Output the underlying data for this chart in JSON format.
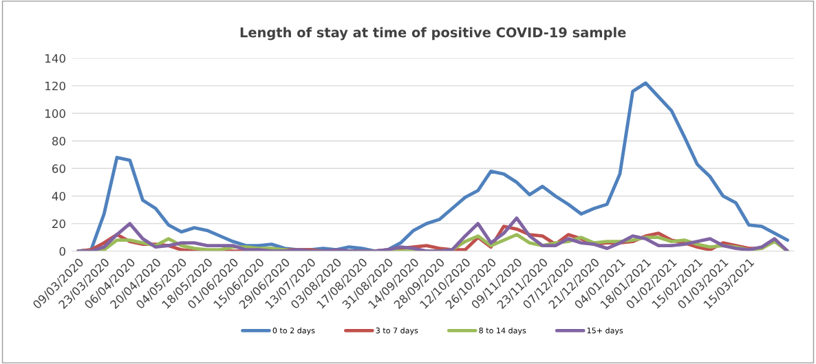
{
  "chart_data": {
    "type": "line",
    "title": "Length of stay at time of positive COVID-19 sample",
    "categories": [
      "09/03/2020",
      null,
      "23/03/2020",
      null,
      "06/04/2020",
      null,
      "20/04/2020",
      null,
      "04/05/2020",
      null,
      "18/05/2020",
      null,
      "01/06/2020",
      null,
      "15/06/2020",
      null,
      "29/06/2020",
      null,
      "13/07/2020",
      null,
      "03/08/2020",
      null,
      "17/08/2020",
      null,
      "31/08/2020",
      null,
      "14/09/2020",
      null,
      "28/09/2020",
      null,
      "12/10/2020",
      null,
      "26/10/2020",
      null,
      "09/11/2020",
      null,
      "23/11/2020",
      null,
      "07/12/2020",
      null,
      "21/12/2020",
      null,
      "04/01/2021",
      null,
      "18/01/2021",
      null,
      "01/02/2021",
      null,
      "15/02/2021",
      null,
      "01/03/2021",
      null,
      "15/03/2021",
      null,
      null,
      null
    ],
    "series": [
      {
        "name": "0 to 2 days",
        "color": "#4f81bd",
        "values": [
          0,
          1,
          27,
          68,
          66,
          37,
          31,
          19,
          14,
          17,
          15,
          11,
          7,
          4,
          4,
          5,
          2,
          1,
          1,
          2,
          1,
          3,
          2,
          0,
          1,
          6,
          15,
          20,
          23,
          31,
          39,
          44,
          58,
          56,
          50,
          41,
          47,
          40,
          34,
          27,
          31,
          34,
          56,
          116,
          122,
          112,
          102,
          83,
          63,
          54,
          40,
          35,
          19,
          18,
          13,
          8
        ]
      },
      {
        "name": "3 to 7 days",
        "color": "#c0504d",
        "values": [
          0,
          1,
          6,
          12,
          7,
          5,
          5,
          4,
          1,
          0,
          0,
          0,
          0,
          0,
          1,
          1,
          1,
          1,
          1,
          0,
          0,
          0,
          0,
          0,
          1,
          2,
          3,
          4,
          2,
          1,
          1,
          10,
          3,
          18,
          16,
          12,
          11,
          5,
          12,
          9,
          5,
          6,
          6,
          7,
          11,
          13,
          8,
          6,
          3,
          1,
          6,
          4,
          2,
          2,
          8,
          0
        ]
      },
      {
        "name": "8 to 14 days",
        "color": "#9bbb59",
        "values": [
          0,
          0,
          1,
          8,
          8,
          6,
          4,
          9,
          4,
          2,
          1,
          1,
          3,
          3,
          2,
          2,
          1,
          0,
          0,
          0,
          0,
          0,
          0,
          0,
          0,
          0,
          0,
          0,
          0,
          1,
          7,
          11,
          4,
          8,
          12,
          6,
          4,
          6,
          7,
          10,
          6,
          7,
          7,
          8,
          10,
          10,
          7,
          8,
          5,
          3,
          4,
          3,
          1,
          2,
          7,
          0
        ]
      },
      {
        "name": "15+ days",
        "color": "#8064a2",
        "values": [
          0,
          0,
          3,
          12,
          20,
          9,
          3,
          4,
          6,
          6,
          4,
          4,
          4,
          1,
          1,
          0,
          0,
          1,
          0,
          0,
          1,
          0,
          0,
          0,
          1,
          3,
          2,
          0,
          0,
          1,
          11,
          20,
          6,
          13,
          24,
          11,
          4,
          4,
          9,
          6,
          5,
          2,
          6,
          11,
          9,
          4,
          4,
          5,
          7,
          9,
          4,
          2,
          1,
          3,
          9,
          0
        ]
      }
    ],
    "ylim": [
      0,
      140
    ],
    "yticks": [
      0,
      20,
      40,
      60,
      80,
      100,
      120,
      140
    ],
    "grid": "y",
    "legend": "bottom",
    "marker": "none",
    "line_style": "solid"
  }
}
